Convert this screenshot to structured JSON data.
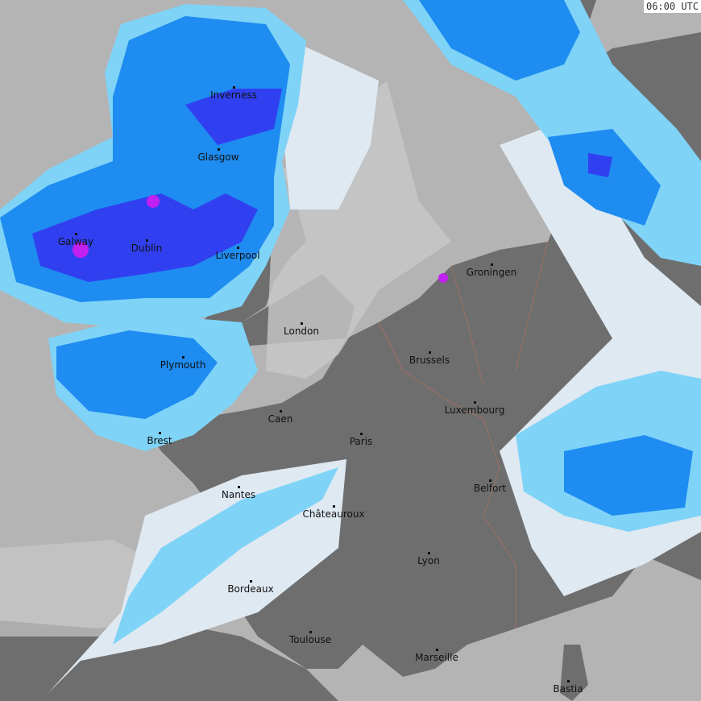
{
  "timestamp": "06:00 UTC",
  "colors": {
    "sea": "#b4b4b4",
    "land": "#6e6e6e",
    "land_light": "#8a8a8a",
    "rain_light": "#dfe9f2",
    "rain_cyan": "#7fd3f7",
    "rain_blue": "#1e8cf0",
    "rain_heavy": "#3040f0",
    "rain_extreme": "#c020f0",
    "borders": "#a07060"
  },
  "cities": [
    {
      "name": "Inverness"
    },
    {
      "name": "Glasgow"
    },
    {
      "name": "Galway"
    },
    {
      "name": "Dublin"
    },
    {
      "name": "Liverpool"
    },
    {
      "name": "London"
    },
    {
      "name": "Plymouth"
    },
    {
      "name": "Caen"
    },
    {
      "name": "Brest"
    },
    {
      "name": "Paris"
    },
    {
      "name": "Brussels"
    },
    {
      "name": "Groningen"
    },
    {
      "name": "Luxembourg"
    },
    {
      "name": "Belfort"
    },
    {
      "name": "Nantes"
    },
    {
      "name": "Châteauroux"
    },
    {
      "name": "Lyon"
    },
    {
      "name": "Bordeaux"
    },
    {
      "name": "Toulouse"
    },
    {
      "name": "Marseille"
    },
    {
      "name": "Bastia"
    }
  ]
}
